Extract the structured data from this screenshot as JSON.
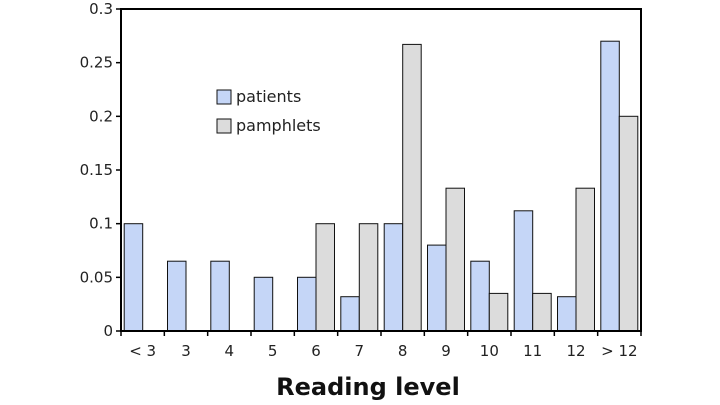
{
  "chart_data": {
    "type": "bar",
    "title": "",
    "xlabel": "Reading level",
    "ylabel": "",
    "ylim": [
      0,
      0.3
    ],
    "yticks": [
      "0",
      "0.05",
      "0.1",
      "0.15",
      "0.2",
      "0.25",
      "0.3"
    ],
    "categories": [
      "< 3",
      "3",
      "4",
      "5",
      "6",
      "7",
      "8",
      "9",
      "10",
      "11",
      "12",
      "> 12"
    ],
    "series": [
      {
        "name": "patients",
        "color": "#c5d6f7",
        "values": [
          0.1,
          0.065,
          0.065,
          0.05,
          0.05,
          0.032,
          0.1,
          0.08,
          0.065,
          0.112,
          0.032,
          0.27
        ]
      },
      {
        "name": "pamphlets",
        "color": "#dcdcdc",
        "values": [
          0,
          0,
          0,
          0,
          0.1,
          0.1,
          0.267,
          0.133,
          0.035,
          0.035,
          0.133,
          0.2
        ]
      }
    ],
    "legend": "upper-left-center",
    "grid": false
  }
}
